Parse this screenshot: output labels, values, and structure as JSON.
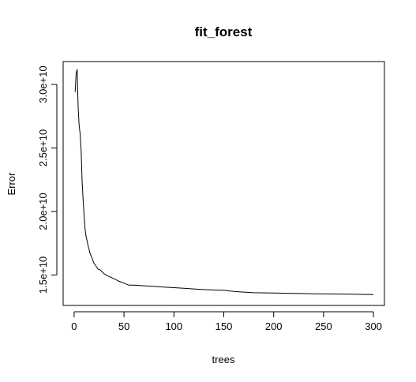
{
  "chart_data": {
    "type": "line",
    "title": "fit_forest",
    "xlabel": "trees",
    "ylabel": "Error",
    "xlim": [
      -11,
      311
    ],
    "ylim": [
      12600000000,
      31800000000
    ],
    "x_ticks": [
      {
        "value": 0,
        "label": "0"
      },
      {
        "value": 50,
        "label": "50"
      },
      {
        "value": 100,
        "label": "100"
      },
      {
        "value": 150,
        "label": "150"
      },
      {
        "value": 200,
        "label": "200"
      },
      {
        "value": 250,
        "label": "250"
      },
      {
        "value": 300,
        "label": "300"
      }
    ],
    "y_ticks": [
      {
        "value": 15000000000,
        "label": "1.5e+10"
      },
      {
        "value": 20000000000,
        "label": "2.0e+10"
      },
      {
        "value": 25000000000,
        "label": "2.5e+10"
      },
      {
        "value": 30000000000,
        "label": "3.0e+10"
      }
    ],
    "grid": false,
    "series": [
      {
        "color": "#000000",
        "x": [
          1,
          2,
          3,
          4,
          5,
          6,
          7,
          8,
          9,
          10,
          11,
          12,
          13,
          14,
          15,
          16,
          17,
          18,
          20,
          22,
          24,
          26,
          28,
          30,
          33,
          36,
          40,
          45,
          50,
          55,
          60,
          70,
          80,
          90,
          100,
          110,
          120,
          130,
          140,
          150,
          160,
          170,
          180,
          200,
          220,
          240,
          260,
          280,
          300
        ],
        "y": [
          29400000000,
          30800000000,
          31200000000,
          28200000000,
          26800000000,
          26100000000,
          24800000000,
          22400000000,
          20900000000,
          19700000000,
          18600000000,
          18000000000,
          17700000000,
          17300000000,
          17000000000,
          16700000000,
          16500000000,
          16300000000,
          15900000000,
          15700000000,
          15450000000,
          15400000000,
          15250000000,
          15100000000,
          14950000000,
          14850000000,
          14700000000,
          14500000000,
          14350000000,
          14200000000,
          14200000000,
          14150000000,
          14100000000,
          14050000000,
          14000000000,
          13950000000,
          13900000000,
          13850000000,
          13820000000,
          13800000000,
          13700000000,
          13650000000,
          13600000000,
          13580000000,
          13550000000,
          13520000000,
          13500000000,
          13480000000,
          13450000000
        ]
      }
    ]
  }
}
